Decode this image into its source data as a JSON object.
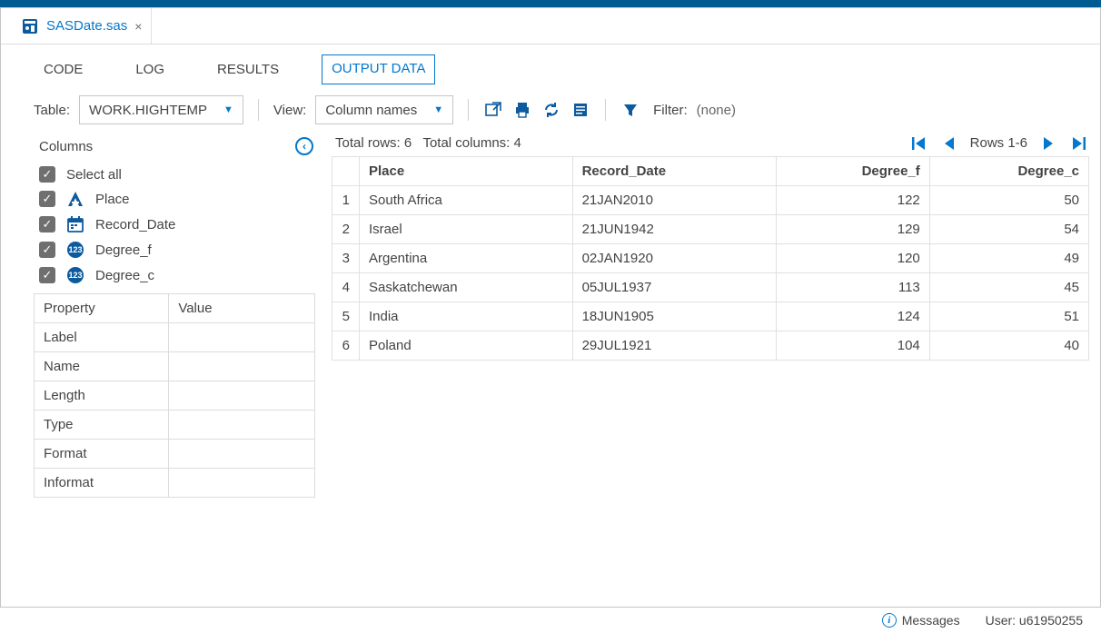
{
  "file_tab": {
    "name": "SASDate.sas"
  },
  "section_tabs": {
    "code": "CODE",
    "log": "LOG",
    "results": "RESULTS",
    "output_data": "OUTPUT DATA",
    "active": "output_data"
  },
  "toolbar": {
    "table_label": "Table:",
    "table_value": "WORK.HIGHTEMP",
    "view_label": "View:",
    "view_value": "Column names",
    "filter_label": "Filter:",
    "filter_value": "(none)"
  },
  "columns_panel": {
    "header": "Columns",
    "select_all": "Select all",
    "items": [
      {
        "label": "Place",
        "type": "char"
      },
      {
        "label": "Record_Date",
        "type": "date"
      },
      {
        "label": "Degree_f",
        "type": "num"
      },
      {
        "label": "Degree_c",
        "type": "num"
      }
    ]
  },
  "property_panel": {
    "headers": {
      "property": "Property",
      "value": "Value"
    },
    "rows": [
      {
        "property": "Label",
        "value": ""
      },
      {
        "property": "Name",
        "value": ""
      },
      {
        "property": "Length",
        "value": ""
      },
      {
        "property": "Type",
        "value": ""
      },
      {
        "property": "Format",
        "value": ""
      },
      {
        "property": "Informat",
        "value": ""
      }
    ]
  },
  "grid": {
    "summary_rows_label": "Total rows:",
    "summary_rows_value": "6",
    "summary_cols_label": "Total columns:",
    "summary_cols_value": "4",
    "paging_label": "Rows 1-6",
    "columns": [
      {
        "name": "Place",
        "align": "left"
      },
      {
        "name": "Record_Date",
        "align": "left"
      },
      {
        "name": "Degree_f",
        "align": "right"
      },
      {
        "name": "Degree_c",
        "align": "right"
      }
    ],
    "rows": [
      {
        "idx": "1",
        "cells": [
          "South Africa",
          "21JAN2010",
          "122",
          "50"
        ]
      },
      {
        "idx": "2",
        "cells": [
          "Israel",
          "21JUN1942",
          "129",
          "54"
        ]
      },
      {
        "idx": "3",
        "cells": [
          "Argentina",
          "02JAN1920",
          "120",
          "49"
        ]
      },
      {
        "idx": "4",
        "cells": [
          "Saskatchewan",
          "05JUL1937",
          "113",
          "45"
        ]
      },
      {
        "idx": "5",
        "cells": [
          "India",
          "18JUN1905",
          "124",
          "51"
        ]
      },
      {
        "idx": "6",
        "cells": [
          "Poland",
          "29JUL1921",
          "104",
          "40"
        ]
      }
    ]
  },
  "status": {
    "messages": "Messages",
    "user_label": "User:",
    "user_value": "u61950255"
  },
  "colors": {
    "accent": "#0378cd",
    "header_bar": "#005b92",
    "icon_dark": "#0d5b9e",
    "border": "#dcdcdc",
    "text": "#444444",
    "chk_bg": "#6f6f6f"
  }
}
